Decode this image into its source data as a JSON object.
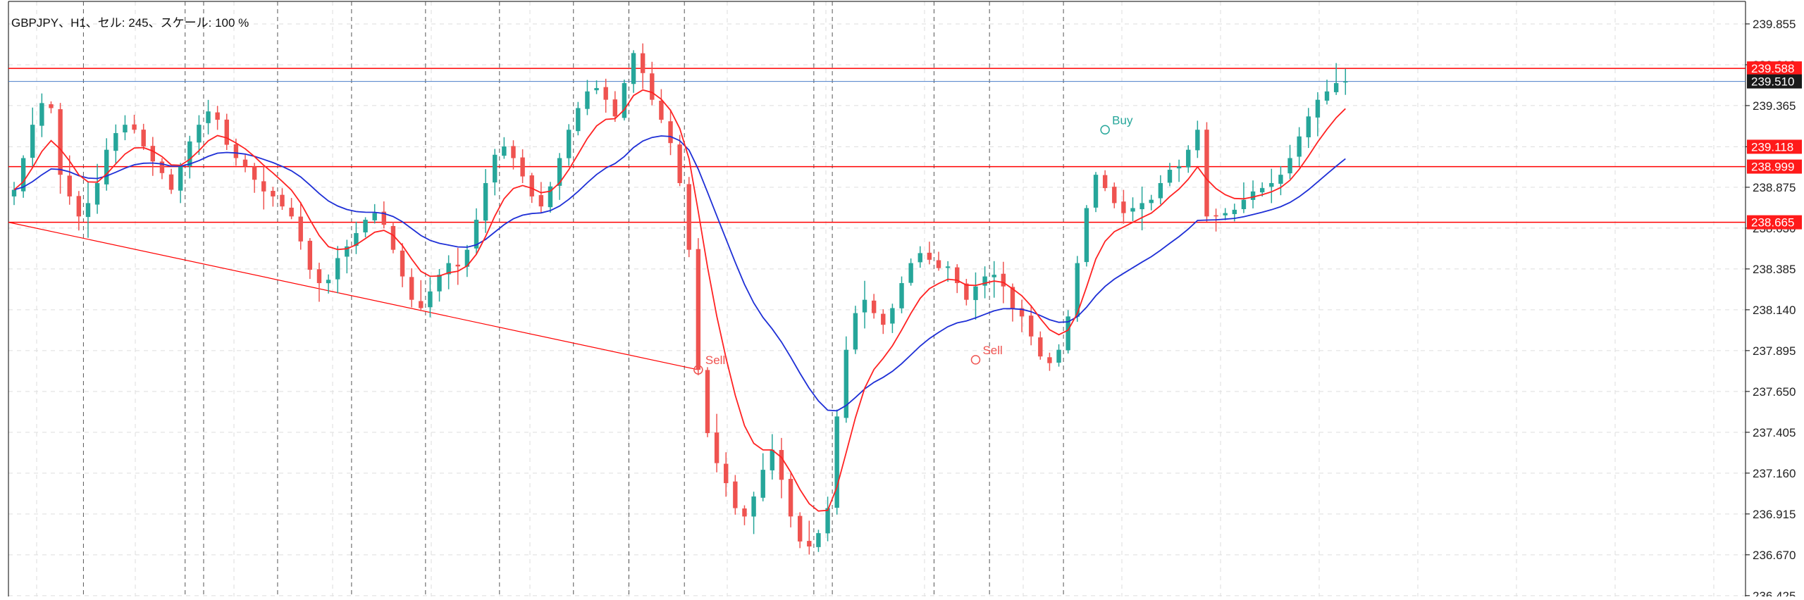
{
  "header": {
    "title": "GBPJPY、H1、セル: 245、スケール: 100 %"
  },
  "colors": {
    "bull": "#26a69a",
    "bear": "#ef5350",
    "ma_fast": "#ff2222",
    "ma_slow": "#1e2fd6",
    "hline": "#ff0000",
    "current_line": "#4a7ec8",
    "grid": "#dddddd",
    "price_tag_red": "#ff1a1a",
    "price_tag_dark": "#1a1a1a"
  },
  "chart_data": {
    "type": "candlestick",
    "symbol": "GBPJPY",
    "timeframe": "H1",
    "ylim": [
      236.42,
      239.99
    ],
    "y_ticks": [
      "239.855",
      "239.610",
      "239.365",
      "239.118",
      "238.875",
      "238.630",
      "238.385",
      "238.140",
      "237.895",
      "237.650",
      "237.405",
      "237.160",
      "236.915",
      "236.670",
      "236.425"
    ],
    "price_tags": [
      {
        "value": 239.588,
        "label": "239.588",
        "style": "red"
      },
      {
        "value": 239.51,
        "label": "239.510",
        "style": "dark"
      },
      {
        "value": 239.118,
        "label": "239.118",
        "style": "red"
      },
      {
        "value": 238.999,
        "label": "238.999",
        "style": "red"
      },
      {
        "value": 238.665,
        "label": "238.665",
        "style": "red"
      }
    ],
    "horizontal_lines": [
      239.588,
      238.999,
      238.665
    ],
    "current_price": 239.51,
    "trend_line": {
      "from": {
        "bar": 0,
        "price": 238.665
      },
      "to": {
        "bar": 74,
        "price": 237.78
      }
    },
    "period_separators": [
      7,
      18,
      20,
      28,
      36,
      44,
      52,
      60,
      66,
      72,
      86,
      88,
      99,
      105,
      113
    ],
    "signals": [
      {
        "label": "Sell",
        "bar": 74,
        "price": 237.78,
        "type": "sell"
      },
      {
        "label": "Sell",
        "bar": 104,
        "price": 237.84,
        "type": "sell"
      },
      {
        "label": "Buy",
        "bar": 118,
        "price": 239.22,
        "type": "buy"
      }
    ],
    "prices": [
      238.86,
      239.05,
      239.25,
      239.38,
      239.35,
      238.95,
      238.82,
      238.7,
      238.78,
      238.9,
      239.1,
      239.2,
      239.25,
      239.22,
      239.12,
      239.03,
      238.96,
      238.86,
      239.0,
      239.15,
      239.25,
      239.33,
      239.28,
      239.13,
      239.05,
      239.0,
      238.92,
      238.85,
      238.82,
      238.76,
      238.7,
      238.55,
      238.38,
      238.3,
      238.32,
      238.45,
      238.52,
      238.6,
      238.68,
      238.72,
      238.65,
      238.5,
      238.34,
      238.2,
      238.15,
      238.25,
      238.35,
      238.42,
      238.4,
      238.5,
      238.68,
      238.9,
      239.07,
      239.12,
      239.05,
      238.94,
      238.82,
      238.76,
      238.88,
      239.05,
      239.22,
      239.35,
      239.45,
      239.47,
      239.4,
      239.3,
      239.5,
      239.68,
      239.56,
      239.4,
      239.28,
      239.14,
      238.9,
      238.5,
      237.78,
      237.4,
      237.22,
      237.1,
      236.95,
      236.9,
      237.02,
      237.18,
      237.3,
      237.12,
      236.9,
      236.75,
      236.72,
      236.8,
      236.95,
      237.5,
      237.9,
      238.12,
      238.2,
      238.12,
      238.05,
      238.15,
      238.3,
      238.42,
      238.48,
      238.44,
      238.39,
      238.4,
      238.3,
      238.2,
      238.28,
      238.34,
      238.35,
      238.28,
      238.15,
      238.1,
      237.98,
      237.86,
      237.82,
      237.9,
      238.1,
      238.42,
      238.75,
      238.95,
      238.87,
      238.78,
      238.72,
      238.75,
      238.78,
      238.8,
      238.9,
      238.98,
      239.0,
      239.1,
      239.22,
      238.7,
      238.7,
      238.72,
      238.74,
      238.8,
      238.85,
      238.87,
      238.9,
      238.95,
      239.05,
      239.18,
      239.3,
      239.4,
      239.45,
      239.5,
      239.51
    ]
  }
}
